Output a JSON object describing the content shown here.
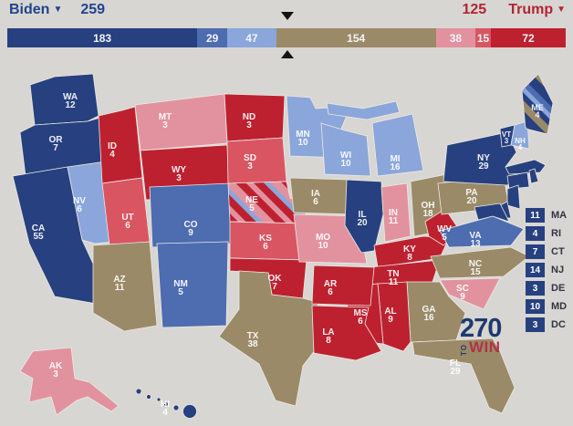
{
  "header": {
    "biden_label": "Biden",
    "biden_total": "259",
    "trump_total": "125",
    "trump_label": "Trump",
    "dropdown_icon": "▼"
  },
  "categories": {
    "safe_biden": "#27407f",
    "likely_biden": "#4e6cb0",
    "lean_biden": "#8aa6da",
    "tossup": "#9b8a68",
    "lean_trump": "#e2929f",
    "likely_trump": "#d95562",
    "safe_trump": "#bd2130"
  },
  "bar": {
    "total_ev": 538,
    "marker_ev": 270,
    "segments": [
      {
        "label": "183",
        "value": 183,
        "category": "safe_biden"
      },
      {
        "label": "29",
        "value": 29,
        "category": "likely_biden"
      },
      {
        "label": "47",
        "value": 47,
        "category": "lean_biden"
      },
      {
        "label": "154",
        "value": 154,
        "category": "tossup"
      },
      {
        "label": "38",
        "value": 38,
        "category": "lean_trump"
      },
      {
        "label": "15",
        "value": 15,
        "category": "likely_trump"
      },
      {
        "label": "72",
        "value": 72,
        "category": "safe_trump"
      }
    ]
  },
  "map": {
    "patterns": {
      "split_ne": [
        "lean_trump",
        "safe_trump",
        "lean_biden"
      ],
      "split_me": [
        "safe_biden",
        "tossup",
        "likely_biden",
        "lean_biden"
      ]
    },
    "states": [
      {
        "abbr": "WA",
        "ev": "12",
        "category": "safe_biden"
      },
      {
        "abbr": "OR",
        "ev": "7",
        "category": "safe_biden"
      },
      {
        "abbr": "CA",
        "ev": "55",
        "category": "safe_biden"
      },
      {
        "abbr": "NV",
        "ev": "6",
        "category": "lean_biden"
      },
      {
        "abbr": "ID",
        "ev": "4",
        "category": "safe_trump"
      },
      {
        "abbr": "MT",
        "ev": "3",
        "category": "lean_trump"
      },
      {
        "abbr": "WY",
        "ev": "3",
        "category": "safe_trump"
      },
      {
        "abbr": "UT",
        "ev": "6",
        "category": "likely_trump"
      },
      {
        "abbr": "CO",
        "ev": "9",
        "category": "likely_biden"
      },
      {
        "abbr": "AZ",
        "ev": "11",
        "category": "tossup"
      },
      {
        "abbr": "NM",
        "ev": "5",
        "category": "likely_biden"
      },
      {
        "abbr": "ND",
        "ev": "3",
        "category": "safe_trump"
      },
      {
        "abbr": "SD",
        "ev": "3",
        "category": "likely_trump"
      },
      {
        "abbr": "NE",
        "ev": "5",
        "category": "split_ne"
      },
      {
        "abbr": "KS",
        "ev": "6",
        "category": "likely_trump"
      },
      {
        "abbr": "OK",
        "ev": "7",
        "category": "safe_trump"
      },
      {
        "abbr": "TX",
        "ev": "38",
        "category": "tossup"
      },
      {
        "abbr": "MN",
        "ev": "10",
        "category": "lean_biden"
      },
      {
        "abbr": "IA",
        "ev": "6",
        "category": "tossup"
      },
      {
        "abbr": "MO",
        "ev": "10",
        "category": "lean_trump"
      },
      {
        "abbr": "AR",
        "ev": "6",
        "category": "safe_trump"
      },
      {
        "abbr": "LA",
        "ev": "8",
        "category": "safe_trump"
      },
      {
        "abbr": "WI",
        "ev": "10",
        "category": "lean_biden"
      },
      {
        "abbr": "IL",
        "ev": "20",
        "category": "safe_biden"
      },
      {
        "abbr": "MI",
        "ev": "16",
        "category": "lean_biden"
      },
      {
        "abbr": "IN",
        "ev": "11",
        "category": "lean_trump"
      },
      {
        "abbr": "OH",
        "ev": "18",
        "category": "tossup"
      },
      {
        "abbr": "KY",
        "ev": "8",
        "category": "safe_trump"
      },
      {
        "abbr": "TN",
        "ev": "11",
        "category": "safe_trump"
      },
      {
        "abbr": "WV",
        "ev": "5",
        "category": "safe_trump"
      },
      {
        "abbr": "VA",
        "ev": "13",
        "category": "likely_biden"
      },
      {
        "abbr": "NC",
        "ev": "15",
        "category": "tossup"
      },
      {
        "abbr": "SC",
        "ev": "9",
        "category": "lean_trump"
      },
      {
        "abbr": "GA",
        "ev": "16",
        "category": "tossup"
      },
      {
        "abbr": "AL",
        "ev": "9",
        "category": "safe_trump"
      },
      {
        "abbr": "MS",
        "ev": "6",
        "category": "safe_trump"
      },
      {
        "abbr": "FL",
        "ev": "29",
        "category": "tossup"
      },
      {
        "abbr": "PA",
        "ev": "20",
        "category": "tossup"
      },
      {
        "abbr": "NY",
        "ev": "29",
        "category": "safe_biden"
      },
      {
        "abbr": "VT",
        "ev": "3",
        "category": "safe_biden"
      },
      {
        "abbr": "NH",
        "ev": "4",
        "category": "lean_biden"
      },
      {
        "abbr": "ME",
        "ev": "4",
        "category": "split_me"
      },
      {
        "abbr": "MA",
        "ev": "11",
        "category": "safe_biden",
        "map_label": false
      },
      {
        "abbr": "RI",
        "ev": "4",
        "category": "safe_biden",
        "map_label": false
      },
      {
        "abbr": "CT",
        "ev": "7",
        "category": "safe_biden",
        "map_label": false
      },
      {
        "abbr": "NJ",
        "ev": "14",
        "category": "safe_biden",
        "map_label": false
      },
      {
        "abbr": "DE",
        "ev": "3",
        "category": "safe_biden",
        "map_label": false
      },
      {
        "abbr": "MD",
        "ev": "10",
        "category": "safe_biden",
        "map_label": false
      },
      {
        "abbr": "AK",
        "ev": "3",
        "category": "lean_trump"
      },
      {
        "abbr": "HI",
        "ev": "4",
        "category": "safe_biden"
      }
    ]
  },
  "legend": [
    {
      "ev": "11",
      "abbr": "MA"
    },
    {
      "ev": "4",
      "abbr": "RI"
    },
    {
      "ev": "7",
      "abbr": "CT"
    },
    {
      "ev": "14",
      "abbr": "NJ"
    },
    {
      "ev": "3",
      "abbr": "DE"
    },
    {
      "ev": "10",
      "abbr": "MD"
    },
    {
      "ev": "3",
      "abbr": "DC"
    }
  ],
  "logo": {
    "number": "270",
    "to": "TO",
    "win": "WIN"
  }
}
